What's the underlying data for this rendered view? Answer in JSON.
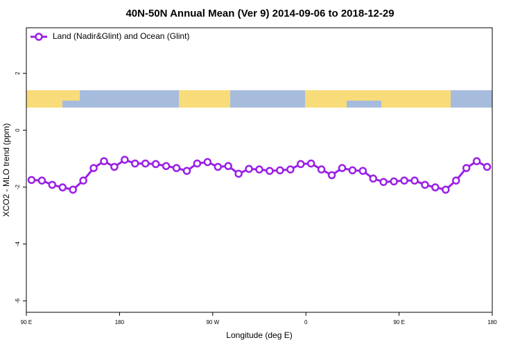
{
  "chart_data": {
    "type": "line",
    "title": "40N-50N Annual Mean (Ver 9)   2014-09-06 to 2018-12-29",
    "x_label": "Longitude (deg E)",
    "y_label": "XCO2 - MLO trend (ppm)",
    "xlim": [
      90,
      540
    ],
    "ylim": [
      -6.4,
      3.6
    ],
    "xticks": [
      {
        "value": 90,
        "label": "90 E"
      },
      180,
      {
        "value": 270,
        "label": "90 W"
      },
      {
        "value": 360,
        "label": "0"
      },
      {
        "value": 450,
        "label": "90 E"
      },
      180
    ],
    "yticks": [
      -6,
      -4,
      -2,
      0,
      2
    ],
    "legend": "top-left",
    "x": [
      95,
      105,
      115,
      125,
      135,
      145,
      155,
      165,
      175,
      185,
      195,
      205,
      215,
      225,
      235,
      245,
      255,
      265,
      275,
      285,
      295,
      305,
      315,
      325,
      335,
      345,
      355,
      365,
      375,
      385,
      395,
      405,
      415,
      425,
      435,
      445,
      455,
      465,
      475,
      485,
      495,
      505,
      515,
      525,
      535
    ],
    "series": [
      {
        "name": "Land (Nadir&Glint) and Ocean (Glint)",
        "color": "#9a1fe6",
        "values": [
          -1.75,
          -1.77,
          -1.92,
          -2.01,
          -2.09,
          -1.77,
          -1.33,
          -1.09,
          -1.29,
          -1.04,
          -1.17,
          -1.17,
          -1.19,
          -1.26,
          -1.33,
          -1.43,
          -1.17,
          -1.12,
          -1.29,
          -1.26,
          -1.53,
          -1.36,
          -1.38,
          -1.43,
          -1.41,
          -1.38,
          -1.19,
          -1.17,
          -1.38,
          -1.58,
          -1.33,
          -1.41,
          -1.43,
          -1.7,
          -1.82,
          -1.8,
          -1.77,
          -1.77,
          -1.92,
          -2.01,
          -2.09,
          -1.77,
          -1.33,
          -1.09,
          -1.29
        ]
      }
    ]
  }
}
